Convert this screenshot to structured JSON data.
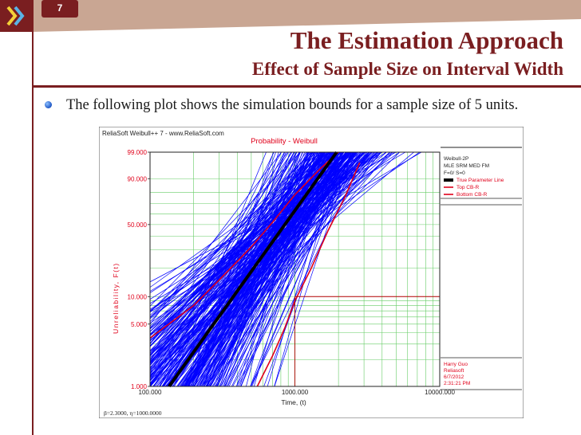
{
  "slide": {
    "number": "7",
    "title": "The Estimation Approach",
    "subtitle": "Effect of Sample Size on Interval Width",
    "bullet": "The following plot shows the simulation bounds for a sample size of 5 units."
  },
  "colors": {
    "accent": "#7a1e20",
    "header_band": "#c9a693",
    "simulation_lines": "#0000ff",
    "true_line": "#000000",
    "bounds": "#e0001a",
    "grid": "#66cc66"
  },
  "chart_data": {
    "type": "line",
    "software_header": "ReliaSoft Weibull++ 7 - www.ReliaSoft.com",
    "title": "Probability - Weibull",
    "xlabel": "Time, (t)",
    "ylabel": "Unreliability, F(t)",
    "x_scale": "log",
    "y_scale": "weibull",
    "xlim": [
      100,
      10000
    ],
    "ylim": [
      1,
      99
    ],
    "x_ticks": [
      "100.000",
      "1000.000",
      "10000.000"
    ],
    "y_ticks": [
      "99.000",
      "90.000",
      "50.000",
      "10.000",
      "5.000",
      "1.000"
    ],
    "grid": true,
    "legend_position": "right",
    "legend": {
      "header": [
        "Weibull-2P",
        "MLE SRM MED FM",
        "F=0/ S=0"
      ],
      "entries": [
        {
          "name": "True Parameter Line",
          "color": "#000000"
        },
        {
          "name": "Top CB-R",
          "color": "#e0001a"
        },
        {
          "name": "Bottom CB-R",
          "color": "#e0001a"
        }
      ]
    },
    "annotation": [
      "Harry Guo",
      "Reliasoft",
      "6/7/2012",
      "2:31:21 PM"
    ],
    "footer": "β=2.3000, η=1000.0000",
    "true_line": {
      "beta": 2.3,
      "eta": 1000
    },
    "simulation": {
      "sample_size": 5,
      "beta": 2.3,
      "eta": 1000
    },
    "bounds": {
      "top_cb_r": {
        "x": [
          100,
          200,
          300,
          500,
          700,
          1000,
          1500,
          2000
        ],
        "y": [
          3.5,
          8,
          15,
          32,
          52,
          78,
          95,
          99
        ]
      },
      "bottom_cb_r": {
        "x": [
          550,
          700,
          850,
          1000,
          1300,
          1700,
          2200,
          2800
        ],
        "y": [
          1,
          2.2,
          4.5,
          9,
          20,
          45,
          75,
          97
        ]
      }
    },
    "reference_lines": {
      "y": 10,
      "x": 1000
    }
  }
}
